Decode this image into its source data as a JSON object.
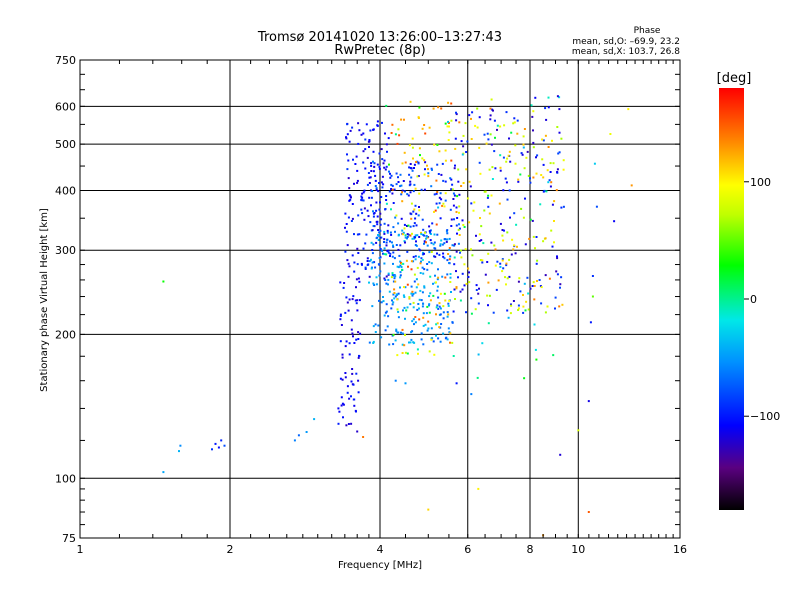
{
  "header": {
    "title_line1": "Tromsø 20141020 13:26:00–13:27:43",
    "title_line2": "RwPretec (8p)",
    "phase_heading": "Phase",
    "phase_stats_o": "mean, sd,O: –69.9, 23.2",
    "phase_stats_x": "mean, sd,X: 103.7, 26.8"
  },
  "colorbar": {
    "label": "[deg]",
    "range": [
      -180,
      180
    ],
    "ticks": [
      {
        "value": 100,
        "label": "100"
      },
      {
        "value": 0,
        "label": "0"
      },
      {
        "value": -100,
        "label": "−100"
      }
    ]
  },
  "chart_data": {
    "type": "scatter",
    "title": "Tromsø 20141020 13:26:00–13:27:43",
    "subtitle": "RwPretec (8p)",
    "xlabel": "Frequency [MHz]",
    "ylabel": "Stationary phase Virtual Height [km]",
    "x_scale": "log2",
    "y_scale": "log",
    "xlim": [
      1,
      16
    ],
    "ylim": [
      75,
      750
    ],
    "x_ticks": [
      1,
      2,
      4,
      6,
      8,
      10,
      16
    ],
    "x_tick_labels": [
      "1",
      "2",
      "4",
      "6",
      "8",
      "10",
      "16"
    ],
    "y_ticks": [
      75,
      100,
      200,
      300,
      400,
      500,
      600,
      750
    ],
    "y_tick_labels": [
      "75",
      "100",
      "200",
      "300",
      "400",
      "500",
      "600",
      "750"
    ],
    "grid": true,
    "color_value": "phase (deg)",
    "clusters": [
      {
        "f": [
          3.3,
          3.65
        ],
        "h": [
          125,
          260
        ],
        "phase": [
          -125,
          -95
        ],
        "n": 70
      },
      {
        "f": [
          3.4,
          4.2
        ],
        "h": [
          260,
          560
        ],
        "phase": [
          -125,
          -85
        ],
        "n": 170
      },
      {
        "f": [
          3.8,
          5.6
        ],
        "h": [
          190,
          330
        ],
        "phase": [
          -80,
          -30
        ],
        "n": 260
      },
      {
        "f": [
          3.8,
          5.8
        ],
        "h": [
          290,
          460
        ],
        "phase": [
          -120,
          -60
        ],
        "n": 180
      },
      {
        "f": [
          4.2,
          5.6
        ],
        "h": [
          180,
          620
        ],
        "phase": [
          70,
          160
        ],
        "n": 130
      },
      {
        "f": [
          5.6,
          9.4
        ],
        "h": [
          220,
          600
        ],
        "phase": [
          -130,
          -80
        ],
        "n": 150
      },
      {
        "f": [
          5.6,
          9.4
        ],
        "h": [
          220,
          600
        ],
        "phase": [
          60,
          140
        ],
        "n": 150
      },
      {
        "f": [
          4.0,
          9.4
        ],
        "h": [
          150,
          640
        ],
        "phase": [
          -40,
          40
        ],
        "n": 70
      }
    ],
    "points": [
      {
        "f": 1.47,
        "h": 103,
        "phase": -45
      },
      {
        "f": 1.47,
        "h": 258,
        "phase": 30
      },
      {
        "f": 1.58,
        "h": 114,
        "phase": -40
      },
      {
        "f": 1.59,
        "h": 117,
        "phase": -55
      },
      {
        "f": 1.84,
        "h": 115,
        "phase": -90
      },
      {
        "f": 1.87,
        "h": 118,
        "phase": -100
      },
      {
        "f": 1.9,
        "h": 116,
        "phase": -105
      },
      {
        "f": 1.95,
        "h": 117,
        "phase": -80
      },
      {
        "f": 1.92,
        "h": 120,
        "phase": -95
      },
      {
        "f": 2.7,
        "h": 120,
        "phase": -60
      },
      {
        "f": 2.75,
        "h": 123,
        "phase": -70
      },
      {
        "f": 2.85,
        "h": 125,
        "phase": -50
      },
      {
        "f": 2.95,
        "h": 133,
        "phase": -40
      },
      {
        "f": 3.3,
        "h": 140,
        "phase": -110
      },
      {
        "f": 3.35,
        "h": 142,
        "phase": -115
      },
      {
        "f": 3.5,
        "h": 130,
        "phase": -120
      },
      {
        "f": 3.7,
        "h": 122,
        "phase": 140
      },
      {
        "f": 4.3,
        "h": 160,
        "phase": -60
      },
      {
        "f": 4.5,
        "h": 158,
        "phase": -50
      },
      {
        "f": 5.7,
        "h": 158,
        "phase": -100
      },
      {
        "f": 6.1,
        "h": 150,
        "phase": -60
      },
      {
        "f": 5.0,
        "h": 86,
        "phase": 110
      },
      {
        "f": 6.3,
        "h": 95,
        "phase": 100
      },
      {
        "f": 8.5,
        "h": 76,
        "phase": 130
      },
      {
        "f": 10.5,
        "h": 85,
        "phase": 150
      },
      {
        "f": 10.5,
        "h": 145,
        "phase": -115
      },
      {
        "f": 10.0,
        "h": 126,
        "phase": 80
      },
      {
        "f": 9.2,
        "h": 112,
        "phase": -120
      },
      {
        "f": 10.6,
        "h": 212,
        "phase": -100
      },
      {
        "f": 10.7,
        "h": 240,
        "phase": 50
      },
      {
        "f": 10.7,
        "h": 265,
        "phase": -90
      },
      {
        "f": 12.6,
        "h": 592,
        "phase": 100
      },
      {
        "f": 12.8,
        "h": 410,
        "phase": 130
      },
      {
        "f": 11.8,
        "h": 345,
        "phase": -110
      },
      {
        "f": 11.6,
        "h": 525,
        "phase": 90
      },
      {
        "f": 10.9,
        "h": 370,
        "phase": -80
      },
      {
        "f": 10.8,
        "h": 455,
        "phase": -30
      },
      {
        "f": 6.7,
        "h": 620,
        "phase": 80
      },
      {
        "f": 8.2,
        "h": 625,
        "phase": -110
      },
      {
        "f": 9.1,
        "h": 630,
        "phase": -120
      }
    ]
  }
}
